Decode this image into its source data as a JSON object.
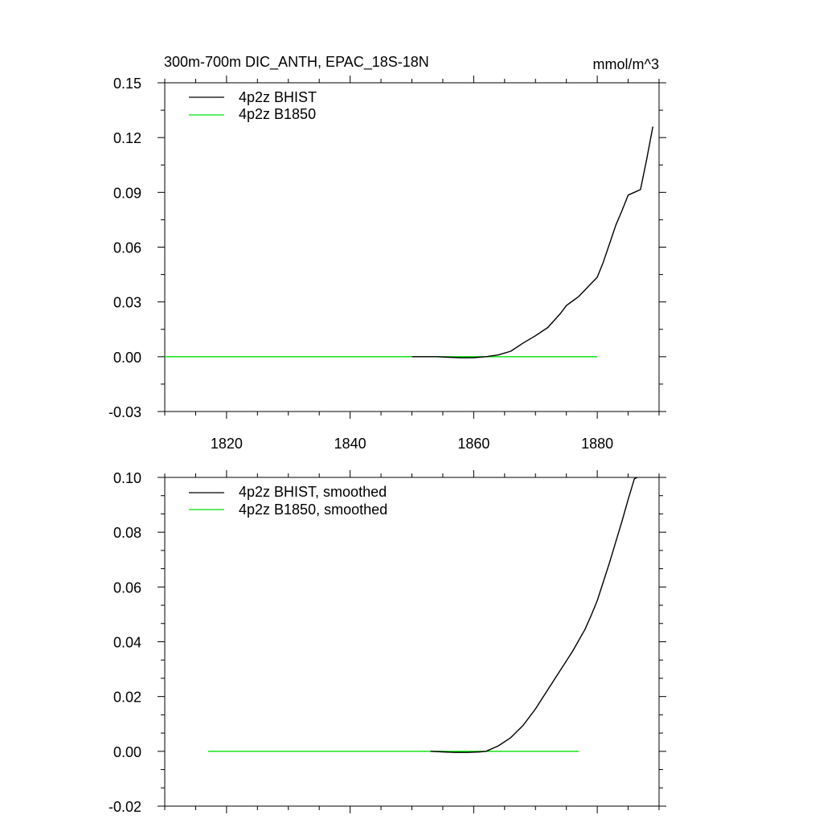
{
  "chart_data": [
    {
      "type": "line",
      "title": "300m-700m DIC_ANTH, EPAC_18S-18N",
      "units": "mmol/m^3",
      "xlim": [
        1810,
        1890
      ],
      "ylim": [
        -0.03,
        0.15
      ],
      "xticks": [
        1820,
        1840,
        1860,
        1880
      ],
      "xticklabels": [
        "1820",
        "1840",
        "1860",
        "1880"
      ],
      "yticks": [
        -0.03,
        0.0,
        0.03,
        0.06,
        0.09,
        0.12,
        0.15
      ],
      "yticklabels": [
        "-0.03",
        "0.00",
        "0.03",
        "0.06",
        "0.09",
        "0.12",
        "0.15"
      ],
      "legend_position": "top-left",
      "grid": false,
      "series": [
        {
          "name": "4p2z BHIST",
          "color": "#000000",
          "x": [
            1850,
            1852,
            1854,
            1856,
            1858,
            1860,
            1862,
            1864,
            1866,
            1868,
            1870,
            1872,
            1874,
            1875,
            1876,
            1877,
            1878,
            1879,
            1880,
            1881,
            1882,
            1883,
            1884,
            1885,
            1886,
            1887,
            1888,
            1889
          ],
          "y": [
            0.0,
            0.0,
            0.0,
            -0.0003,
            -0.0006,
            -0.0005,
            0.0,
            0.001,
            0.003,
            0.0075,
            0.0115,
            0.016,
            0.0235,
            0.028,
            0.0305,
            0.033,
            0.0365,
            0.04,
            0.0435,
            0.052,
            0.062,
            0.072,
            0.08,
            0.0885,
            0.09,
            0.0915,
            0.108,
            0.126
          ]
        },
        {
          "name": "4p2z B1850",
          "color": "#00e000",
          "x": [
            1810,
            1820,
            1830,
            1840,
            1850,
            1860,
            1870,
            1880
          ],
          "y": [
            0,
            0,
            0,
            0,
            0,
            0,
            0,
            0
          ]
        }
      ]
    },
    {
      "type": "line",
      "title": "",
      "xlim": [
        1810,
        1890
      ],
      "ylim": [
        -0.02,
        0.1
      ],
      "xticks": [
        1820,
        1840,
        1860,
        1880
      ],
      "yticks": [
        -0.02,
        0.0,
        0.02,
        0.04,
        0.06,
        0.08,
        0.1
      ],
      "yticklabels": [
        "-0.02",
        "0.00",
        "0.02",
        "0.04",
        "0.06",
        "0.08",
        "0.10"
      ],
      "legend_position": "top-left",
      "grid": false,
      "series": [
        {
          "name": "4p2z BHIST, smoothed",
          "color": "#000000",
          "x": [
            1853,
            1855,
            1857,
            1859,
            1861,
            1862,
            1864,
            1866,
            1868,
            1870,
            1872,
            1874,
            1876,
            1878,
            1879,
            1880,
            1881,
            1882,
            1883,
            1884,
            1885,
            1886,
            1886.5
          ],
          "y": [
            0.0,
            -0.0002,
            -0.0004,
            -0.0004,
            -0.0002,
            0.0,
            0.002,
            0.005,
            0.0095,
            0.0155,
            0.0225,
            0.0295,
            0.0365,
            0.0445,
            0.0495,
            0.055,
            0.062,
            0.069,
            0.0765,
            0.084,
            0.092,
            0.0995,
            0.1
          ]
        },
        {
          "name": "4p2z B1850, smoothed",
          "color": "#00e000",
          "x": [
            1817,
            1830,
            1840,
            1850,
            1860,
            1870,
            1877
          ],
          "y": [
            0,
            0,
            0,
            0,
            0,
            0,
            0
          ]
        }
      ]
    }
  ]
}
